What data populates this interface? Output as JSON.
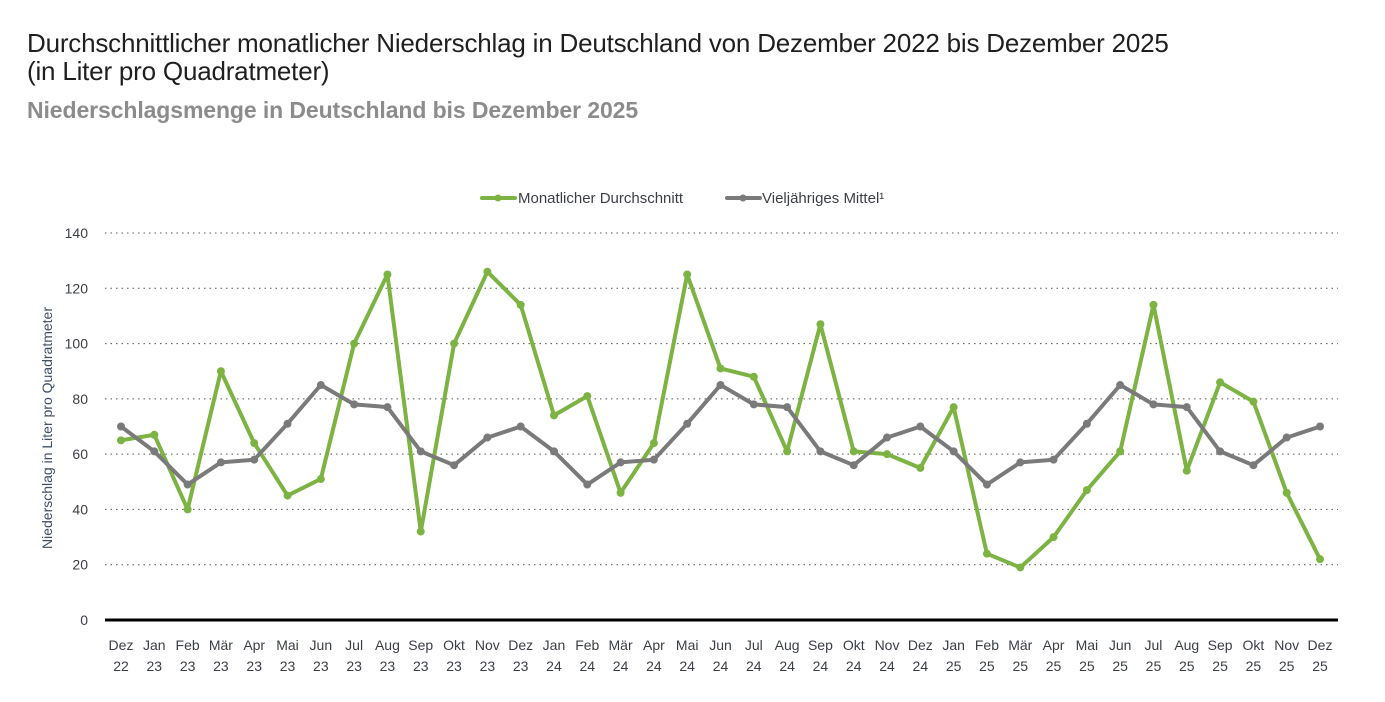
{
  "header": {
    "title_line1": "Durchschnittlicher monatlicher Niederschlag in Deutschland von Dezember 2022 bis Dezember 2025",
    "title_line2": "(in Liter pro Quadratmeter)",
    "subtitle": "Niederschlagsmenge in Deutschland bis Dezember 2025"
  },
  "chart_data": {
    "type": "line",
    "title": "Durchschnittlicher monatlicher Niederschlag in Deutschland von Dezember 2022 bis Dezember 2025 (in Liter pro Quadratmeter)",
    "subtitle": "Niederschlagsmenge in Deutschland bis Dezember 2025",
    "xlabel": "",
    "ylabel": "Niederschlag in Liter pro Quadratmeter",
    "ylim": [
      0,
      140
    ],
    "yticks": [
      0,
      20,
      40,
      60,
      80,
      100,
      120,
      140
    ],
    "grid": true,
    "legend_position": "top-center",
    "categories": [
      [
        "Dez",
        "22"
      ],
      [
        "Jan",
        "23"
      ],
      [
        "Feb",
        "23"
      ],
      [
        "Mär",
        "23"
      ],
      [
        "Apr",
        "23"
      ],
      [
        "Mai",
        "23"
      ],
      [
        "Jun",
        "23"
      ],
      [
        "Jul",
        "23"
      ],
      [
        "Aug",
        "23"
      ],
      [
        "Sep",
        "23"
      ],
      [
        "Okt",
        "23"
      ],
      [
        "Nov",
        "23"
      ],
      [
        "Dez",
        "23"
      ],
      [
        "Jan",
        "24"
      ],
      [
        "Feb",
        "24"
      ],
      [
        "Mär",
        "24"
      ],
      [
        "Apr",
        "24"
      ],
      [
        "Mai",
        "24"
      ],
      [
        "Jun",
        "24"
      ],
      [
        "Jul",
        "24"
      ],
      [
        "Aug",
        "24"
      ],
      [
        "Sep",
        "24"
      ],
      [
        "Okt",
        "24"
      ],
      [
        "Nov",
        "24"
      ],
      [
        "Dez",
        "24"
      ],
      [
        "Jan",
        "25"
      ],
      [
        "Feb",
        "25"
      ],
      [
        "Mär",
        "25"
      ],
      [
        "Apr",
        "25"
      ],
      [
        "Mai",
        "25"
      ],
      [
        "Jun",
        "25"
      ],
      [
        "Jul",
        "25"
      ],
      [
        "Aug",
        "25"
      ],
      [
        "Sep",
        "25"
      ],
      [
        "Okt",
        "25"
      ],
      [
        "Nov",
        "25"
      ],
      [
        "Dez",
        "25"
      ]
    ],
    "series": [
      {
        "name": "Monatlicher Durchschnitt",
        "color": "#7cb342",
        "values": [
          65,
          67,
          40,
          90,
          64,
          45,
          51,
          100,
          125,
          32,
          100,
          126,
          114,
          74,
          81,
          46,
          64,
          125,
          91,
          88,
          61,
          107,
          61,
          60,
          55,
          77,
          24,
          19,
          30,
          47,
          61,
          114,
          54,
          86,
          79,
          46,
          22
        ]
      },
      {
        "name": "Vieljähriges Mittel¹",
        "color": "#7a7a7a",
        "values": [
          70,
          61,
          49,
          57,
          58,
          71,
          85,
          78,
          77,
          61,
          56,
          66,
          70,
          61,
          49,
          57,
          58,
          71,
          85,
          78,
          77,
          61,
          56,
          66,
          70,
          61,
          49,
          57,
          58,
          71,
          85,
          78,
          77,
          61,
          56,
          66,
          70
        ]
      }
    ]
  }
}
